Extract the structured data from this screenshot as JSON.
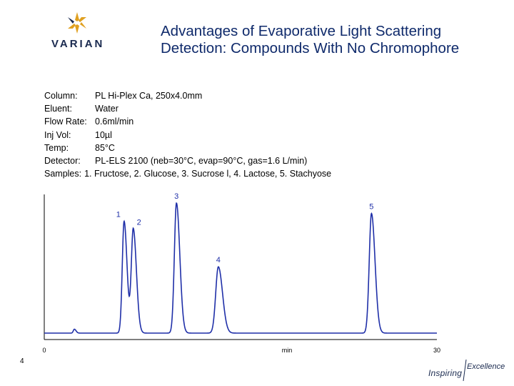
{
  "header": {
    "logo_text": "VARIAN",
    "title_line1": "Advantages of Evaporative Light Scattering",
    "title_line2": "Detection: Compounds With No Chromophore",
    "colors": {
      "title_text": "#0f2a6b",
      "logo_gold": "#e0a020",
      "logo_text": "#1a2a4f"
    }
  },
  "conditions": {
    "column": {
      "label": "Column:",
      "value": "PL Hi-Plex Ca, 250x4.0mm"
    },
    "eluent": {
      "label": "Eluent:",
      "value": "Water"
    },
    "flow_rate": {
      "label": "Flow Rate:",
      "value": "0.6ml/min"
    },
    "inj_vol": {
      "label": "Inj Vol:",
      "value": "10µl"
    },
    "temp": {
      "label": "Temp:",
      "value": "85°C"
    },
    "detector": {
      "label": "Detector:",
      "value": "PL-ELS 2100 (neb=30°C, evap=90°C, gas=1.6 L/min)"
    },
    "samples": {
      "label": "Samples:",
      "value": "1. Fructose, 2. Glucose, 3. Sucrose l, 4. Lactose, 5. Stachyose"
    }
  },
  "chart_data": {
    "type": "line",
    "title": "",
    "xlabel": "min",
    "ylabel": "",
    "xlim": [
      0,
      30
    ],
    "x_tick_labels": [
      "0",
      "30"
    ],
    "line_color": "#1f2fa8",
    "peaks": [
      {
        "label": "1",
        "time": 6.1,
        "height": 0.86,
        "width": 0.14
      },
      {
        "label": "2",
        "time": 6.8,
        "height": 0.8,
        "width": 0.15
      },
      {
        "label": "3",
        "time": 10.1,
        "height": 1.0,
        "width": 0.16
      },
      {
        "label": "4",
        "time": 13.3,
        "height": 0.51,
        "width": 0.2
      },
      {
        "label": "5",
        "time": 25.0,
        "height": 0.92,
        "width": 0.17
      }
    ],
    "minor_peaks": [
      {
        "time": 2.3,
        "height": 0.03,
        "width": 0.08
      }
    ],
    "grid": false
  },
  "footer": {
    "page_number": "4",
    "tagline_inspiring": "Inspiring",
    "tagline_excellence": "Excellence"
  }
}
